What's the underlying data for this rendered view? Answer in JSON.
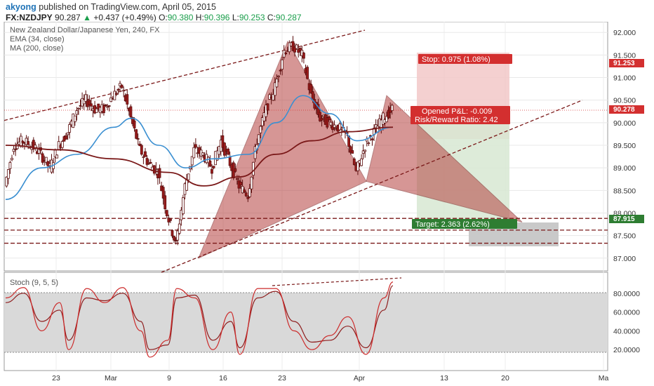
{
  "header": {
    "author": "akyong",
    "published": "published on TradingView.com, April 05, 2015",
    "symbol": "FX:NZDJPY",
    "last": "90.287",
    "change_arrow": "▲",
    "change": "+0.437 (+0.49%)",
    "o_label": "O:",
    "o_val": "90.380",
    "h_label": "H:",
    "h_val": "90.396",
    "l_label": "L:",
    "l_val": "90.253",
    "c_label": "C:",
    "c_val": "90.287"
  },
  "main_legend": {
    "title": "New Zealand Dollar/Japanese Yen, 240, FX",
    "ema": "EMA (34, close)",
    "ma": "MA (200, close)"
  },
  "stoch_legend": "Stoch (9, 5, 5)",
  "price_axis": {
    "ticks": [
      "92.000",
      "91.500",
      "91.000",
      "90.500",
      "90.000",
      "89.500",
      "89.000",
      "88.500",
      "88.000",
      "87.500",
      "87.000"
    ],
    "stop_tag": "91.253",
    "last_tag": "90.278",
    "target_tag": "87.915"
  },
  "stoch_axis": {
    "ticks": [
      "80.0000",
      "60.0000",
      "40.0000",
      "20.0000"
    ]
  },
  "time_axis": {
    "labels": [
      "23",
      "Mar",
      "9",
      "16",
      "23",
      "Apr",
      "13",
      "20",
      "Ma"
    ]
  },
  "position": {
    "stop_label": "Stop: 0.975 (1.08%)",
    "pnl_label": "Opened P&L: -0.009",
    "rr_label": "Risk/Reward Ratio: 2.42",
    "target_label": "Target: 2.363 (2.62%)"
  },
  "colors": {
    "pattern_fill": "#b5413f",
    "ema": "#3a8fd1",
    "ma": "#7a1818",
    "candle_up": "#ffffff",
    "candle_down": "#9b1b1b",
    "stop_red": "#d32f2f",
    "target_green": "#2e7d32",
    "stoch_k": "#cc2a2a",
    "stoch_d": "#8e1e1e"
  },
  "chart_data": {
    "type": "candlestick",
    "title": "New Zealand Dollar/Japanese Yen, 240, FX",
    "ylim": [
      86.8,
      92.1
    ],
    "x_labels": [
      "23",
      "Mar",
      "9",
      "16",
      "23",
      "Apr",
      "13",
      "20",
      "Ma"
    ],
    "close_path": [
      [
        0,
        88.6
      ],
      [
        1,
        89.5
      ],
      [
        2,
        89.6
      ],
      [
        3,
        89.5
      ],
      [
        4,
        89.3
      ],
      [
        5,
        89.0
      ],
      [
        6,
        89.5
      ],
      [
        7,
        89.8
      ],
      [
        8,
        90.3
      ],
      [
        9,
        90.5
      ],
      [
        10,
        90.3
      ],
      [
        11,
        90.3
      ],
      [
        12,
        90.6
      ],
      [
        13,
        90.8
      ],
      [
        14,
        90.1
      ],
      [
        15,
        89.4
      ],
      [
        16,
        89.1
      ],
      [
        17,
        88.9
      ],
      [
        18,
        88.0
      ],
      [
        19,
        87.3
      ],
      [
        20,
        88.6
      ],
      [
        21,
        89.4
      ],
      [
        22,
        89.3
      ],
      [
        23,
        89.0
      ],
      [
        24,
        89.6
      ],
      [
        25,
        89.1
      ],
      [
        26,
        88.6
      ],
      [
        27,
        88.4
      ],
      [
        28,
        89.6
      ],
      [
        29,
        90.3
      ],
      [
        30,
        90.8
      ],
      [
        31,
        91.6
      ],
      [
        32,
        91.7
      ],
      [
        33,
        91.5
      ],
      [
        34,
        90.6
      ],
      [
        35,
        90.1
      ],
      [
        36,
        90.0
      ],
      [
        37,
        89.9
      ],
      [
        38,
        89.7
      ],
      [
        39,
        88.9
      ],
      [
        40,
        89.5
      ],
      [
        41,
        89.8
      ],
      [
        42,
        90.1
      ],
      [
        43,
        90.3
      ]
    ],
    "ema34_path": [
      [
        0,
        88.3
      ],
      [
        4,
        89.0
      ],
      [
        8,
        89.3
      ],
      [
        12,
        89.9
      ],
      [
        14,
        90.1
      ],
      [
        17,
        89.5
      ],
      [
        20,
        89.0
      ],
      [
        23,
        89.2
      ],
      [
        27,
        89.3
      ],
      [
        30,
        90.0
      ],
      [
        33,
        90.6
      ],
      [
        36,
        90.2
      ],
      [
        39,
        89.6
      ],
      [
        43,
        89.9
      ]
    ],
    "ma200_path": [
      [
        0,
        89.5
      ],
      [
        6,
        89.4
      ],
      [
        12,
        89.2
      ],
      [
        18,
        88.9
      ],
      [
        22,
        88.6
      ],
      [
        26,
        88.8
      ],
      [
        30,
        89.3
      ],
      [
        34,
        89.6
      ],
      [
        38,
        89.8
      ],
      [
        43,
        89.9
      ]
    ],
    "pattern_points": {
      "X": 87.0,
      "A": 91.8,
      "B": 88.7,
      "C": 90.6,
      "D": 87.8
    },
    "position": {
      "stop": 91.253,
      "entry": 90.278,
      "target": 87.915
    },
    "horizontal_levels": [
      87.88,
      87.62,
      87.33
    ],
    "stoch": {
      "ylim": [
        0,
        100
      ],
      "k_path": [
        [
          0,
          75
        ],
        [
          2,
          86
        ],
        [
          4,
          40
        ],
        [
          6,
          70
        ],
        [
          7,
          20
        ],
        [
          9,
          85
        ],
        [
          11,
          70
        ],
        [
          13,
          86
        ],
        [
          15,
          40
        ],
        [
          16,
          12
        ],
        [
          18,
          30
        ],
        [
          19,
          85
        ],
        [
          21,
          75
        ],
        [
          23,
          20
        ],
        [
          25,
          60
        ],
        [
          26,
          15
        ],
        [
          28,
          85
        ],
        [
          30,
          85
        ],
        [
          32,
          40
        ],
        [
          34,
          20
        ],
        [
          36,
          35
        ],
        [
          38,
          55
        ],
        [
          40,
          15
        ],
        [
          42,
          75
        ],
        [
          43,
          92
        ]
      ],
      "d_path": [
        [
          0,
          70
        ],
        [
          2,
          80
        ],
        [
          4,
          50
        ],
        [
          6,
          62
        ],
        [
          7,
          30
        ],
        [
          9,
          75
        ],
        [
          11,
          72
        ],
        [
          13,
          80
        ],
        [
          15,
          50
        ],
        [
          16,
          20
        ],
        [
          18,
          25
        ],
        [
          19,
          75
        ],
        [
          21,
          78
        ],
        [
          23,
          30
        ],
        [
          25,
          50
        ],
        [
          26,
          22
        ],
        [
          28,
          75
        ],
        [
          30,
          82
        ],
        [
          32,
          50
        ],
        [
          34,
          28
        ],
        [
          36,
          30
        ],
        [
          38,
          45
        ],
        [
          40,
          22
        ],
        [
          42,
          62
        ],
        [
          43,
          88
        ]
      ]
    }
  }
}
